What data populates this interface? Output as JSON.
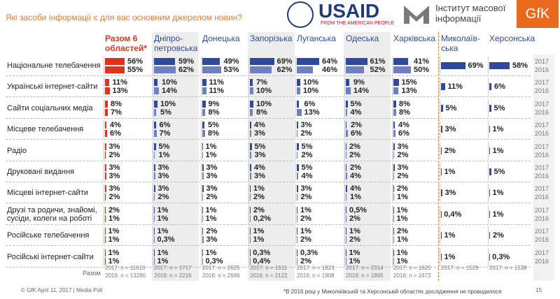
{
  "header": {
    "subtitle": "Які засоби інформації є для вас основним джерелом новин?",
    "usaid": "USAID",
    "usaid_tagline": "FROM THE AMERICAN PEOPLE",
    "imi": "Інститут масової\nінформації",
    "gfk": "GfK"
  },
  "chart_data": {
    "type": "bar",
    "categories": [
      "Національне телебачення",
      "Українські інтернет-сайти",
      "Сайти соціальних медіа",
      "Місцеве телебачення",
      "Радіо",
      "Друковані видання",
      "Місцеві інтернет-сайти",
      "Друзі та родичи, знайомі,\nсусіди, колеги на роботі",
      "Російське телебачення",
      "Російські інтернет-сайти"
    ],
    "years": [
      "2017",
      "2016"
    ],
    "sample_label": "Разом",
    "series": [
      {
        "name": "Разом 6\nобластей*",
        "color": "#e2321c",
        "color_2016": "#e2321c",
        "values_2017": [
          56,
          11,
          8,
          4,
          3,
          3,
          3,
          2,
          1,
          1
        ],
        "value_labels_2017": [
          "56%",
          "11%",
          "8%",
          "4%",
          "3%",
          "3%",
          "3%",
          "2%",
          "1%",
          "1%"
        ],
        "values_2016": [
          55,
          13,
          7,
          6,
          2,
          3,
          2,
          1,
          1,
          1
        ],
        "value_labels_2016": [
          "55%",
          "13%",
          "7%",
          "6%",
          "2%",
          "3%",
          "2%",
          "1%",
          "1%",
          "1%"
        ],
        "n_2017": "2017: n = 11610",
        "n_2016": "2016: n = 13280"
      },
      {
        "name": "Дніпро-\nпетровська",
        "color": "#2f4a9c",
        "color_2016": "#6f7fc4",
        "values_2017": [
          59,
          10,
          10,
          6,
          5,
          3,
          3,
          1,
          1,
          1
        ],
        "value_labels_2017": [
          "59%",
          "10%",
          "10%",
          "6%",
          "5%",
          "3%",
          "3%",
          "1%",
          "1%",
          "1%"
        ],
        "values_2016": [
          62,
          14,
          5,
          7,
          1,
          3,
          2,
          1,
          0.3,
          1
        ],
        "value_labels_2016": [
          "62%",
          "14%",
          "5%",
          "7%",
          "1%",
          "3%",
          "2%",
          "1%",
          "0,3%",
          "1%"
        ],
        "n_2017": "2017: n = 1717",
        "n_2016": "2016: n = 2216"
      },
      {
        "name": "Донецька",
        "color": "#2f4a9c",
        "color_2016": "#6f7fc4",
        "values_2017": [
          49,
          11,
          9,
          5,
          1,
          3,
          3,
          1,
          2,
          1
        ],
        "value_labels_2017": [
          "49%",
          "11%",
          "9%",
          "5%",
          "1%",
          "3%",
          "3%",
          "1%",
          "2%",
          "1%"
        ],
        "values_2016": [
          53,
          11,
          8,
          8,
          1,
          3,
          2,
          1,
          3,
          0.3
        ],
        "value_labels_2016": [
          "53%",
          "11%",
          "8%",
          "8%",
          "1%",
          "3%",
          "2%",
          "1%",
          "3%",
          "0,3%"
        ],
        "n_2017": "2017: n = 2625",
        "n_2016": "2016: n = 2666"
      },
      {
        "name": "Запорізька",
        "color": "#2f4a9c",
        "color_2016": "#6f7fc4",
        "values_2017": [
          69,
          7,
          10,
          4,
          5,
          4,
          1,
          2,
          1,
          0.3
        ],
        "value_labels_2017": [
          "69%",
          "7%",
          "10%",
          "4%",
          "5%",
          "4%",
          "1%",
          "2%",
          "1%",
          "0,3%"
        ],
        "values_2016": [
          62,
          10,
          8,
          3,
          3,
          3,
          2,
          0.2,
          1,
          0.4
        ],
        "value_labels_2016": [
          "62%",
          "10%",
          "8%",
          "3%",
          "3%",
          "3%",
          "2%",
          "0,2%",
          "1%",
          "0,4%"
        ],
        "n_2017": "2017: n = 1511",
        "n_2016": "2016: n = 2122"
      },
      {
        "name": "Луганська",
        "color": "#2f4a9c",
        "color_2016": "#6f7fc4",
        "values_2017": [
          64,
          10,
          6,
          3,
          5,
          5,
          3,
          1,
          1,
          0.3
        ],
        "value_labels_2017": [
          "64%",
          "10%",
          "6%",
          "3%",
          "5%",
          "5%",
          "3%",
          "1%",
          "1%",
          "0,3%"
        ],
        "values_2016": [
          46,
          10,
          13,
          2,
          2,
          4,
          2,
          2,
          2,
          2
        ],
        "value_labels_2016": [
          "46%",
          "10%",
          "13%",
          "2%",
          "2%",
          "4%",
          "2%",
          "2%",
          "2%",
          "2%"
        ],
        "n_2017": "2017: n = 1823",
        "n_2016": "2016: n = 1908"
      },
      {
        "name": "Одеська",
        "color": "#2f4a9c",
        "color_2016": "#6f7fc4",
        "values_2017": [
          61,
          9,
          5,
          2,
          2,
          2,
          4,
          0.5,
          1,
          1
        ],
        "value_labels_2017": [
          "61%",
          "9%",
          "5%",
          "2%",
          "2%",
          "2%",
          "4%",
          "0,5%",
          "1%",
          "1%"
        ],
        "values_2016": [
          52,
          14,
          4,
          6,
          2,
          4,
          1,
          2,
          2,
          1
        ],
        "value_labels_2016": [
          "52%",
          "14%",
          "4%",
          "6%",
          "2%",
          "4%",
          "1%",
          "2%",
          "2%",
          "1%"
        ],
        "n_2017": "2017: n = 2314",
        "n_2016": "2016: n = 1895"
      },
      {
        "name": "Харківська",
        "color": "#2f4a9c",
        "color_2016": "#6f7fc4",
        "values_2017": [
          41,
          15,
          8,
          4,
          3,
          3,
          2,
          1,
          2,
          1
        ],
        "value_labels_2017": [
          "41%",
          "15%",
          "8%",
          "4%",
          "3%",
          "3%",
          "2%",
          "1%",
          "2%",
          "1%"
        ],
        "values_2016": [
          50,
          13,
          8,
          6,
          2,
          2,
          1,
          1,
          1,
          1
        ],
        "value_labels_2016": [
          "50%",
          "13%",
          "8%",
          "6%",
          "2%",
          "2%",
          "1%",
          "1%",
          "1%",
          "1%"
        ],
        "n_2017": "2017: n = 1620",
        "n_2016": "2016: n = 2473"
      },
      {
        "name": "Миколаїв-\nська",
        "color": "#2f4a9c",
        "values_2017": [
          69,
          11,
          5,
          3,
          2,
          1,
          3,
          0.4,
          1,
          1
        ],
        "value_labels_2017": [
          "69%",
          "11%",
          "5%",
          "3%",
          "2%",
          "1%",
          "3%",
          "0,4%",
          "1%",
          "1%"
        ],
        "n_2017": "2017: n = 1529"
      },
      {
        "name": "Херсонська",
        "color": "#2f4a9c",
        "values_2017": [
          58,
          6,
          5,
          1,
          1,
          5,
          1,
          1,
          2,
          0.3
        ],
        "value_labels_2017": [
          "58%",
          "6%",
          "5%",
          "1%",
          "1%",
          "5%",
          "1%",
          "1%",
          "2%",
          "0,3%"
        ],
        "n_2017": "2017: n = 1538"
      }
    ]
  },
  "footer": {
    "source": "© GfK April 11, 2017 | Media Poll",
    "footnote": "*В 2016 році у Миколаївській та Херсонській областях дослідження не проводилося",
    "page": "15"
  }
}
